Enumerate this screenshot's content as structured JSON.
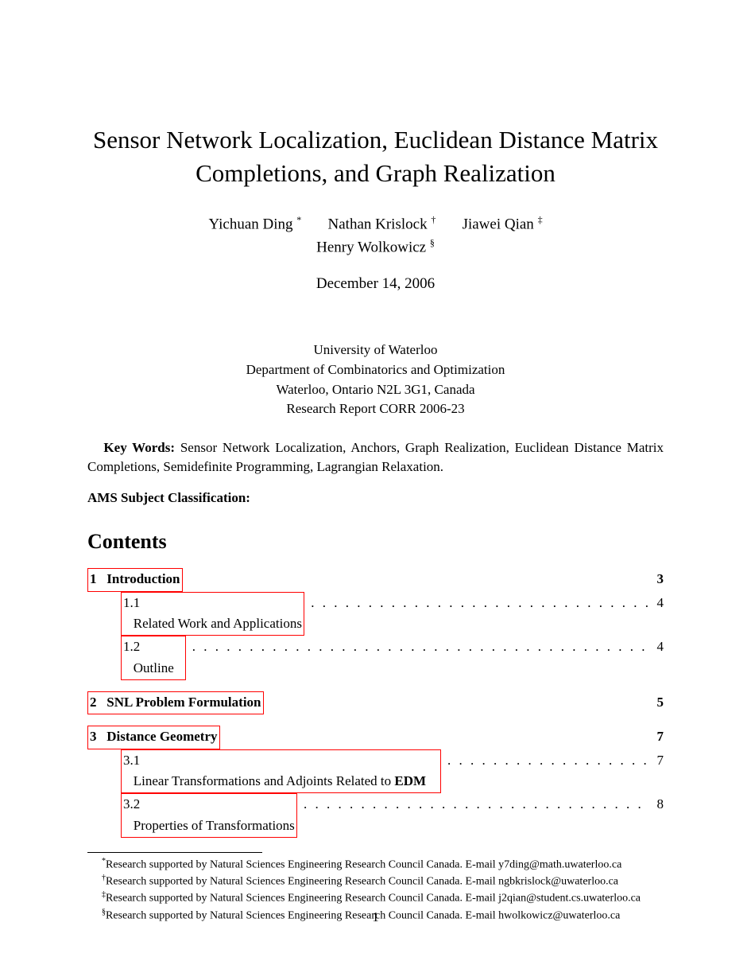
{
  "title_line1": "Sensor Network Localization, Euclidean Distance Matrix",
  "title_line2": "Completions, and Graph Realization",
  "authors": {
    "a1_name": "Yichuan Ding",
    "a1_mark": "*",
    "a2_name": "Nathan Krislock",
    "a2_mark": "†",
    "a3_name": "Jiawei Qian",
    "a3_mark": "‡",
    "a4_name": "Henry Wolkowicz",
    "a4_mark": "§"
  },
  "date": "December 14, 2006",
  "affil": {
    "l1": "University of Waterloo",
    "l2": "Department of Combinatorics and Optimization",
    "l3": "Waterloo, Ontario N2L 3G1, Canada",
    "l4": "Research Report CORR 2006-23"
  },
  "keywords_label": "Key Words:",
  "keywords_text": " Sensor Network Localization, Anchors, Graph Realization, Euclidean Distance Matrix Completions, Semidefinite Programming, Lagrangian Relaxation.",
  "ams_label": "AMS Subject Classification:",
  "contents_heading": "Contents",
  "toc": {
    "s1": {
      "num": "1",
      "label": "Introduction",
      "page": "3",
      "sub": [
        {
          "num": "1.1",
          "label": "Related Work and Applications",
          "page": "4"
        },
        {
          "num": "1.2",
          "label": "Outline",
          "page": "4"
        }
      ]
    },
    "s2": {
      "num": "2",
      "label": "SNL Problem Formulation",
      "page": "5"
    },
    "s3": {
      "num": "3",
      "label": "Distance Geometry",
      "page": "7",
      "sub": [
        {
          "num": "3.1",
          "label": "Linear Transformations and Adjoints Related to ",
          "edm": "EDM",
          "page": "7"
        },
        {
          "num": "3.2",
          "label": "Properties of Transformations",
          "page": "8"
        }
      ]
    }
  },
  "footnotes": {
    "f1": {
      "mark": "*",
      "text": "Research supported by Natural Sciences Engineering Research Council Canada.  E-mail y7ding@math.uwaterloo.ca"
    },
    "f2": {
      "mark": "†",
      "text": "Research supported by Natural Sciences Engineering Research Council Canada.  E-mail ngbkrislock@uwaterloo.ca"
    },
    "f3": {
      "mark": "‡",
      "text": "Research supported by Natural Sciences Engineering Research Council Canada.  E-mail j2qian@student.cs.uwaterloo.ca"
    },
    "f4": {
      "mark": "§",
      "text": "Research supported by Natural Sciences Engineering Research Council Canada.  E-mail hwolkowicz@uwaterloo.ca"
    }
  },
  "page_number": "1",
  "colors": {
    "link_border": "#ff0000",
    "text": "#000000",
    "background": "#ffffff"
  },
  "typography": {
    "title_fontsize": 31,
    "author_fontsize": 19,
    "body_fontsize": 17,
    "contents_fontsize": 26,
    "footnote_fontsize": 14
  }
}
